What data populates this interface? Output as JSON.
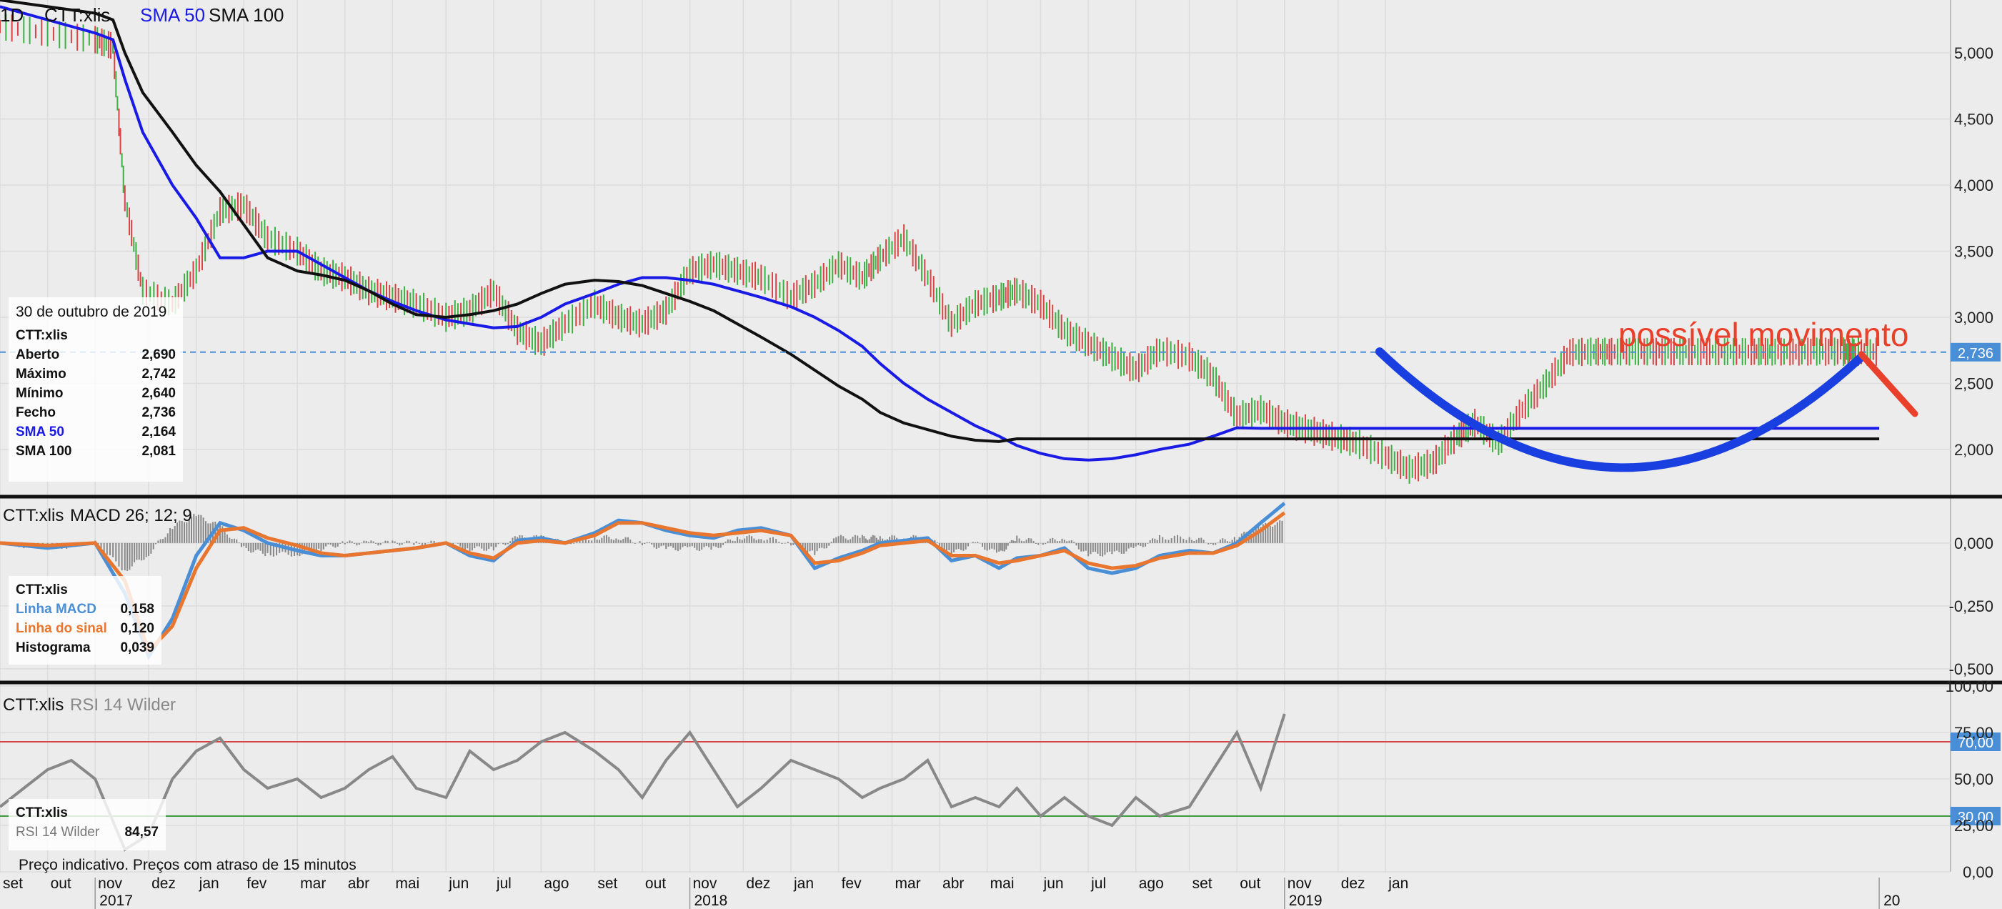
{
  "header": {
    "interval": "1D",
    "symbol": "CTT:xlis",
    "sma50_label": "SMA 50",
    "sma100_label": "SMA 100"
  },
  "colors": {
    "sma50": "#1a1ae6",
    "sma100": "#111111",
    "macd": "#4a8fd6",
    "signal": "#e8762e",
    "rsi": "#888888",
    "up": "#3cb043",
    "down": "#d64545",
    "annotation": "#e8402b",
    "curve": "#1a3fe0",
    "last_price": "#4a8fd6"
  },
  "info_price": {
    "date": "30 de outubro de 2019",
    "symbol": "CTT:xlis",
    "rows": [
      {
        "label": "Aberto",
        "value": "2,690"
      },
      {
        "label": "Máximo",
        "value": "2,742"
      },
      {
        "label": "Mínimo",
        "value": "2,640"
      },
      {
        "label": "Fecho",
        "value": "2,736"
      },
      {
        "label": "SMA 50",
        "value": "2,164"
      },
      {
        "label": "SMA 100",
        "value": "2,081"
      }
    ]
  },
  "info_macd": {
    "symbol": "CTT:xlis",
    "rows": [
      {
        "label": "Linha MACD",
        "value": "0,158"
      },
      {
        "label": "Linha do sinal",
        "value": "0,120"
      },
      {
        "label": "Histograma",
        "value": "0,039"
      }
    ]
  },
  "info_rsi": {
    "symbol": "CTT:xlis",
    "rows": [
      {
        "label": "RSI 14 Wilder",
        "value": "84,57"
      }
    ]
  },
  "footer_note": "Preço indicativo. Preços com atraso de 15 minutos",
  "chart_data": [
    {
      "type": "line",
      "panel": "price",
      "annotation": "possível movimento",
      "last_price_label": "2,736",
      "y_ticks": [
        "5,000",
        "4,500",
        "4,000",
        "3,500",
        "3,000",
        "2,500",
        "2,000"
      ],
      "y_tick_values": [
        5.0,
        4.5,
        4.0,
        3.5,
        3.0,
        2.5,
        2.0
      ],
      "ylim": [
        1.67,
        5.4
      ],
      "x": [
        2016.67,
        2016.75,
        2016.83,
        2016.86,
        2016.88,
        2016.91,
        2016.96,
        2017.0,
        2017.04,
        2017.08,
        2017.12,
        2017.17,
        2017.21,
        2017.25,
        2017.29,
        2017.33,
        2017.37,
        2017.42,
        2017.46,
        2017.5,
        2017.54,
        2017.58,
        2017.62,
        2017.67,
        2017.71,
        2017.75,
        2017.79,
        2017.83,
        2017.87,
        2017.91,
        2017.95,
        2018.0,
        2018.04,
        2018.08,
        2018.12,
        2018.15,
        2018.19,
        2018.23,
        2018.27,
        2018.31,
        2018.35,
        2018.38,
        2018.42,
        2018.46,
        2018.5,
        2018.54,
        2018.58,
        2018.62,
        2018.67,
        2018.71,
        2018.75,
        2018.79,
        2018.83,
        2018.87,
        2018.91,
        2018.95,
        2019.0,
        2019.04,
        2019.08,
        2019.12,
        2019.15,
        2019.19,
        2019.23,
        2019.27,
        2019.31,
        2019.35,
        2019.38,
        2019.42,
        2019.46,
        2019.5,
        2019.54,
        2019.58,
        2019.62,
        2019.65,
        2019.69,
        2019.73,
        2019.77,
        2019.79,
        2019.83
      ],
      "series": [
        {
          "name": "CTT:xlis",
          "values": [
            5.2,
            5.15,
            5.1,
            5.05,
            3.9,
            3.2,
            3.1,
            3.35,
            3.8,
            3.85,
            3.6,
            3.5,
            3.35,
            3.3,
            3.2,
            3.15,
            3.1,
            3.0,
            3.05,
            3.2,
            2.9,
            2.8,
            2.95,
            3.1,
            3.0,
            2.95,
            3.05,
            3.35,
            3.4,
            3.35,
            3.3,
            3.15,
            3.25,
            3.4,
            3.3,
            3.45,
            3.6,
            3.3,
            2.95,
            3.1,
            3.15,
            3.2,
            3.1,
            2.9,
            2.8,
            2.7,
            2.6,
            2.75,
            2.7,
            2.55,
            2.25,
            2.3,
            2.2,
            2.15,
            2.1,
            2.05,
            1.95,
            1.85,
            1.9,
            2.1,
            2.2,
            2.05,
            2.3,
            2.5,
            2.736,
            2.74,
            2.74,
            2.74,
            2.74,
            2.74,
            2.74,
            2.74,
            2.74,
            2.74,
            2.74,
            2.74,
            2.74,
            2.74,
            2.74
          ]
        },
        {
          "name": "SMA 50",
          "values": [
            5.35,
            5.25,
            5.15,
            5.1,
            4.8,
            4.4,
            4.0,
            3.75,
            3.45,
            3.45,
            3.5,
            3.5,
            3.4,
            3.3,
            3.2,
            3.12,
            3.05,
            2.98,
            2.95,
            2.92,
            2.93,
            3.0,
            3.1,
            3.18,
            3.25,
            3.3,
            3.3,
            3.28,
            3.25,
            3.2,
            3.15,
            3.08,
            3.0,
            2.9,
            2.78,
            2.65,
            2.5,
            2.38,
            2.28,
            2.18,
            2.1,
            2.03,
            1.97,
            1.93,
            1.92,
            1.93,
            1.96,
            2.0,
            2.04,
            2.1,
            2.164,
            2.16,
            2.16,
            2.16,
            2.16,
            2.16,
            2.16,
            2.16,
            2.16,
            2.16,
            2.16,
            2.16,
            2.16,
            2.16,
            2.16,
            2.16,
            2.16,
            2.16,
            2.16,
            2.16,
            2.16,
            2.16,
            2.16,
            2.16,
            2.16,
            2.16,
            2.16,
            2.16,
            2.16
          ]
        },
        {
          "name": "SMA 100",
          "values": [
            5.4,
            5.35,
            5.3,
            5.25,
            5.0,
            4.7,
            4.4,
            4.15,
            3.95,
            3.7,
            3.45,
            3.35,
            3.32,
            3.28,
            3.2,
            3.1,
            3.02,
            3.0,
            3.02,
            3.05,
            3.1,
            3.18,
            3.25,
            3.28,
            3.27,
            3.24,
            3.18,
            3.12,
            3.05,
            2.95,
            2.85,
            2.72,
            2.6,
            2.48,
            2.38,
            2.28,
            2.2,
            2.15,
            2.1,
            2.07,
            2.06,
            2.081,
            2.08,
            2.08,
            2.08,
            2.08,
            2.08,
            2.08,
            2.08,
            2.08,
            2.08,
            2.08,
            2.08,
            2.08,
            2.08,
            2.08,
            2.08,
            2.08,
            2.08,
            2.08,
            2.08,
            2.08,
            2.08,
            2.08,
            2.08,
            2.08,
            2.08,
            2.08,
            2.08,
            2.08,
            2.08,
            2.08,
            2.08,
            2.08,
            2.08,
            2.08,
            2.08,
            2.08,
            2.08
          ]
        }
      ]
    },
    {
      "type": "line",
      "panel": "macd",
      "title": "MACD 26; 12; 9",
      "y_ticks": [
        "0,000",
        "-0,250",
        "-0,500"
      ],
      "y_tick_values": [
        0,
        -0.25,
        -0.5
      ],
      "ylim": [
        -0.54,
        0.17
      ],
      "x": [
        2016.67,
        2016.75,
        2016.83,
        2016.88,
        2016.92,
        2016.96,
        2017.0,
        2017.04,
        2017.08,
        2017.12,
        2017.17,
        2017.21,
        2017.25,
        2017.29,
        2017.33,
        2017.37,
        2017.42,
        2017.46,
        2017.5,
        2017.54,
        2017.58,
        2017.62,
        2017.67,
        2017.71,
        2017.75,
        2017.79,
        2017.83,
        2017.87,
        2017.91,
        2017.95,
        2018.0,
        2018.04,
        2018.08,
        2018.12,
        2018.15,
        2018.19,
        2018.23,
        2018.27,
        2018.31,
        2018.35,
        2018.38,
        2018.42,
        2018.46,
        2018.5,
        2018.54,
        2018.58,
        2018.62,
        2018.67,
        2018.71,
        2018.75,
        2018.79,
        2018.83
      ],
      "series": [
        {
          "name": "Linha MACD",
          "values": [
            0.0,
            -0.02,
            0.0,
            -0.2,
            -0.45,
            -0.3,
            -0.05,
            0.08,
            0.05,
            0.0,
            -0.03,
            -0.05,
            -0.05,
            -0.04,
            -0.03,
            -0.02,
            0.0,
            -0.05,
            -0.07,
            0.01,
            0.02,
            0.0,
            0.04,
            0.09,
            0.08,
            0.05,
            0.03,
            0.02,
            0.05,
            0.06,
            0.03,
            -0.1,
            -0.06,
            -0.03,
            0.0,
            0.01,
            0.02,
            -0.07,
            -0.05,
            -0.1,
            -0.06,
            -0.05,
            -0.02,
            -0.1,
            -0.12,
            -0.1,
            -0.05,
            -0.03,
            -0.04,
            0.0,
            0.08,
            0.158
          ]
        },
        {
          "name": "Linha do sinal",
          "values": [
            0.0,
            -0.01,
            0.0,
            -0.15,
            -0.43,
            -0.33,
            -0.1,
            0.05,
            0.06,
            0.02,
            -0.01,
            -0.04,
            -0.05,
            -0.04,
            -0.03,
            -0.02,
            0.0,
            -0.04,
            -0.06,
            0.0,
            0.01,
            0.0,
            0.03,
            0.08,
            0.08,
            0.06,
            0.04,
            0.03,
            0.04,
            0.05,
            0.03,
            -0.08,
            -0.07,
            -0.04,
            -0.01,
            0.0,
            0.01,
            -0.05,
            -0.05,
            -0.08,
            -0.07,
            -0.05,
            -0.03,
            -0.08,
            -0.1,
            -0.09,
            -0.06,
            -0.04,
            -0.04,
            -0.01,
            0.05,
            0.12
          ]
        }
      ]
    },
    {
      "type": "line",
      "panel": "rsi",
      "title": "RSI 14 Wilder",
      "y_ticks": [
        "100,00",
        "75,00",
        "50,00",
        "25,00",
        "0,00"
      ],
      "y_tick_values": [
        100,
        75,
        50,
        25,
        0
      ],
      "ylim": [
        0,
        100
      ],
      "levels": [
        70,
        30
      ],
      "level_labels": [
        "70,00",
        "30,00"
      ],
      "x": [
        2016.67,
        2016.71,
        2016.75,
        2016.79,
        2016.83,
        2016.88,
        2016.92,
        2016.96,
        2017.0,
        2017.04,
        2017.08,
        2017.12,
        2017.17,
        2017.21,
        2017.25,
        2017.29,
        2017.33,
        2017.37,
        2017.42,
        2017.46,
        2017.5,
        2017.54,
        2017.58,
        2017.62,
        2017.67,
        2017.71,
        2017.75,
        2017.79,
        2017.83,
        2017.87,
        2017.91,
        2017.95,
        2018.0,
        2018.04,
        2018.08,
        2018.12,
        2018.15,
        2018.19,
        2018.23,
        2018.27,
        2018.31,
        2018.35,
        2018.38,
        2018.42,
        2018.46,
        2018.5,
        2018.54,
        2018.58,
        2018.62,
        2018.67,
        2018.71,
        2018.75,
        2018.79,
        2018.83
      ],
      "series": [
        {
          "name": "RSI 14 Wilder",
          "values": [
            35,
            45,
            55,
            60,
            50,
            12,
            20,
            50,
            65,
            72,
            55,
            45,
            50,
            40,
            45,
            55,
            62,
            45,
            40,
            65,
            55,
            60,
            70,
            75,
            65,
            55,
            40,
            60,
            75,
            55,
            35,
            45,
            60,
            55,
            50,
            40,
            45,
            50,
            60,
            35,
            40,
            35,
            45,
            30,
            40,
            30,
            25,
            40,
            30,
            35,
            55,
            75,
            45,
            85
          ]
        }
      ]
    }
  ],
  "x_axis": {
    "month_labels": [
      "set",
      "out",
      "nov",
      "dez",
      "jan",
      "fev",
      "mar",
      "abr",
      "mai",
      "jun",
      "jul",
      "ago",
      "set",
      "out",
      "nov",
      "dez",
      "jan",
      "fev",
      "mar",
      "abr",
      "mai",
      "jun",
      "jul",
      "ago",
      "set",
      "out",
      "nov",
      "dez",
      "jan"
    ],
    "month_positions": [
      2016.67,
      2016.75,
      2016.83,
      2016.92,
      2017.0,
      2017.08,
      2017.17,
      2017.25,
      2017.33,
      2017.42,
      2017.5,
      2017.58,
      2017.67,
      2017.75,
      2017.83,
      2017.92,
      2018.0,
      2018.08,
      2018.17,
      2018.25,
      2018.33,
      2018.42,
      2018.5,
      2018.58,
      2018.67,
      2018.75,
      2018.83,
      2018.92,
      2019.0
    ],
    "year_labels": [
      "2017",
      "2018",
      "2019",
      "20"
    ],
    "year_positions": [
      2016.83,
      2017.83,
      2018.83,
      2019.83
    ]
  }
}
